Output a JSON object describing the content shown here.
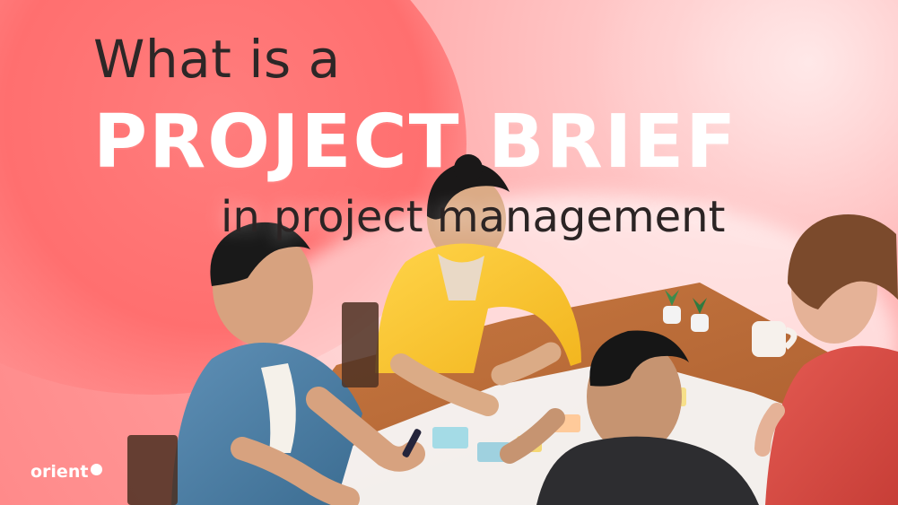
{
  "headline": {
    "line_1": "What is a",
    "line_2": "PROJECT BRIEF",
    "line_3": "in project management"
  },
  "brand": {
    "logo_text": "orient"
  },
  "colors": {
    "background_primary": "#ff8a8a",
    "background_secondary": "#ffb8b8",
    "headline_dark": "#2d2727",
    "headline_white": "#ffffff"
  }
}
